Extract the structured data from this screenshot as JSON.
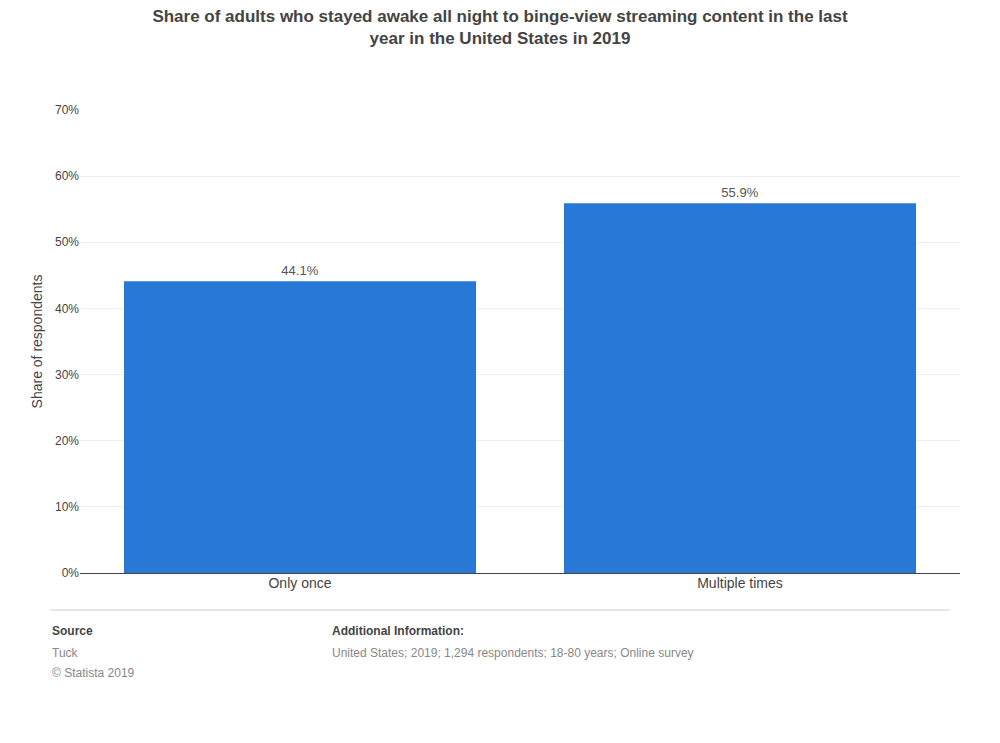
{
  "chart_data": {
    "type": "bar",
    "title": "Share of adults who stayed awake all night to binge-view streaming content in the last\nyear in the United States in 2019",
    "categories": [
      "Only once",
      "Multiple times"
    ],
    "values": [
      44.1,
      55.9
    ],
    "value_labels": [
      "44.1%",
      "55.9%"
    ],
    "data_labels": true,
    "color": "#2878d6",
    "ylabel": "Share of respondents",
    "ylim": [
      0,
      70
    ],
    "yticks": [
      {
        "value": 0,
        "label": "0%"
      },
      {
        "value": 10,
        "label": "10%"
      },
      {
        "value": 20,
        "label": "20%"
      },
      {
        "value": 30,
        "label": "30%"
      },
      {
        "value": 40,
        "label": "40%"
      },
      {
        "value": 50,
        "label": "50%"
      },
      {
        "value": 60,
        "label": "60%"
      },
      {
        "value": 70,
        "label": "70%"
      }
    ],
    "grid": true,
    "annotations": [
      "Source",
      "Tuck",
      "© Statista 2019",
      "Additional Information:",
      "United States; 2019; 1,294 respondents; 18-80 years; Online survey"
    ]
  }
}
